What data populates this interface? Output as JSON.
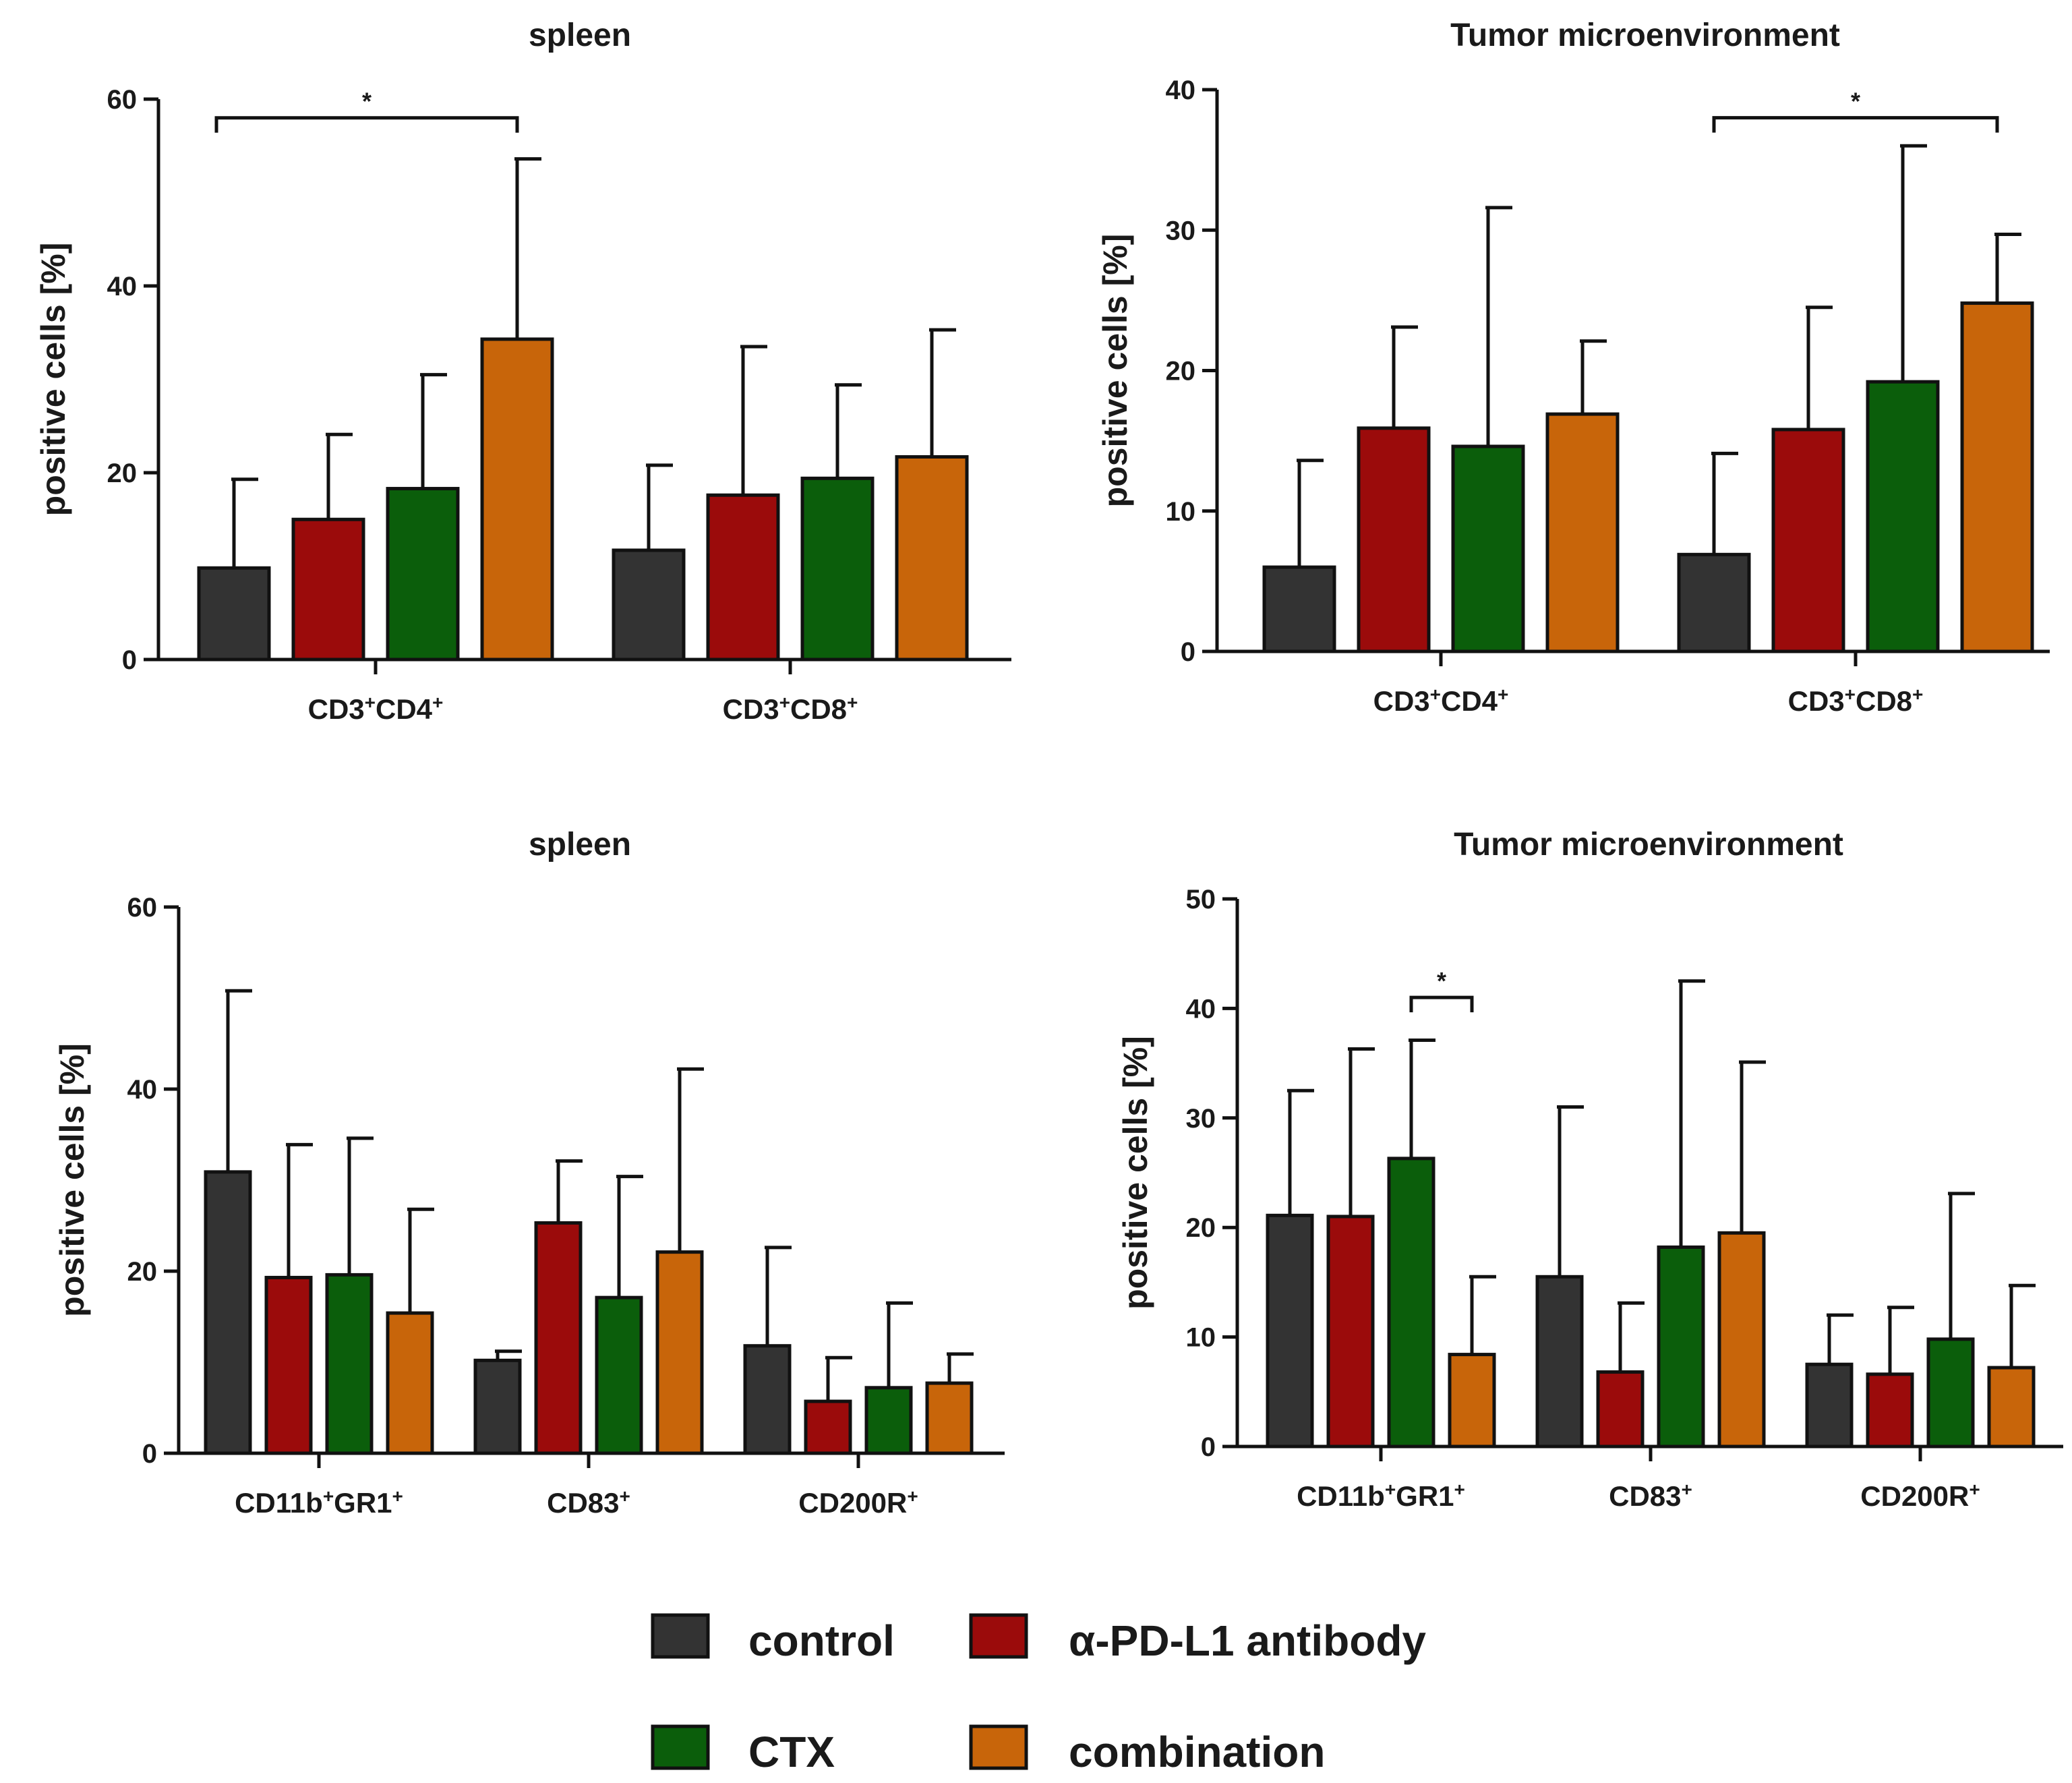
{
  "chart_data": [
    {
      "type": "bar",
      "title": "spleen",
      "ylabel": "positive cells [%]",
      "ylim": [
        0,
        60
      ],
      "yticks": [
        0,
        20,
        40,
        60
      ],
      "categories": [
        {
          "base": "CD3",
          "sup1": "+",
          "mid": "CD4",
          "sup2": "+"
        },
        {
          "base": "CD3",
          "sup1": "+",
          "mid": "CD8",
          "sup2": "+"
        }
      ],
      "series": [
        {
          "name": "control",
          "values": [
            9.8,
            11.7
          ],
          "errors": [
            9.5,
            9.1
          ]
        },
        {
          "name": "α-PD-L1 antibody",
          "values": [
            15.0,
            17.6
          ],
          "errors": [
            9.1,
            15.9
          ]
        },
        {
          "name": "CTX",
          "values": [
            18.3,
            19.4
          ],
          "errors": [
            12.2,
            10.0
          ]
        },
        {
          "name": "combination",
          "values": [
            34.3,
            21.7
          ],
          "errors": [
            19.3,
            13.6
          ]
        }
      ],
      "significance": [
        {
          "label": "*",
          "from": [
            0,
            0
          ],
          "to": [
            0,
            3
          ],
          "y": 58
        }
      ]
    },
    {
      "type": "bar",
      "title": "Tumor microenvironment",
      "ylabel": "positive cells [%]",
      "ylim": [
        0,
        40
      ],
      "yticks": [
        0,
        10,
        20,
        30,
        40
      ],
      "categories": [
        {
          "base": "CD3",
          "sup1": "+",
          "mid": "CD4",
          "sup2": "+"
        },
        {
          "base": "CD3",
          "sup1": "+",
          "mid": "CD8",
          "sup2": "+"
        }
      ],
      "series": [
        {
          "name": "control",
          "values": [
            6.0,
            6.9
          ],
          "errors": [
            7.6,
            7.2
          ]
        },
        {
          "name": "α-PD-L1 antibody",
          "values": [
            15.9,
            15.8
          ],
          "errors": [
            7.2,
            8.7
          ]
        },
        {
          "name": "CTX",
          "values": [
            14.6,
            19.2
          ],
          "errors": [
            17.0,
            16.8
          ]
        },
        {
          "name": "combination",
          "values": [
            16.9,
            24.8
          ],
          "errors": [
            5.2,
            4.9
          ]
        }
      ],
      "significance": [
        {
          "label": "*",
          "from": [
            1,
            0
          ],
          "to": [
            1,
            3
          ],
          "y": 38
        }
      ]
    },
    {
      "type": "bar",
      "title": "spleen",
      "ylabel": "positive cells [%]",
      "ylim": [
        0,
        60
      ],
      "yticks": [
        0,
        20,
        40,
        60
      ],
      "categories": [
        {
          "base": "CD11b",
          "sup1": "+",
          "mid": "GR1",
          "sup2": "+"
        },
        {
          "base": "CD83",
          "sup1": "+",
          "mid": "",
          "sup2": ""
        },
        {
          "base": "CD200R",
          "sup1": "+",
          "mid": "",
          "sup2": ""
        }
      ],
      "series": [
        {
          "name": "control",
          "values": [
            30.9,
            10.2,
            11.8
          ],
          "errors": [
            19.9,
            1.0,
            10.8
          ]
        },
        {
          "name": "α-PD-L1 antibody",
          "values": [
            19.3,
            25.3,
            5.7
          ],
          "errors": [
            14.6,
            6.8,
            4.8
          ]
        },
        {
          "name": "CTX",
          "values": [
            19.6,
            17.1,
            7.2
          ],
          "errors": [
            15.0,
            13.3,
            9.3
          ]
        },
        {
          "name": "combination",
          "values": [
            15.4,
            22.1,
            7.7
          ],
          "errors": [
            11.4,
            20.1,
            3.2
          ]
        }
      ],
      "significance": []
    },
    {
      "type": "bar",
      "title": "Tumor microenvironment",
      "ylabel": "positive cells [%]",
      "ylim": [
        0,
        50
      ],
      "yticks": [
        0,
        10,
        20,
        30,
        40,
        50
      ],
      "categories": [
        {
          "base": "CD11b",
          "sup1": "+",
          "mid": "GR1",
          "sup2": "+"
        },
        {
          "base": "CD83",
          "sup1": "+",
          "mid": "",
          "sup2": ""
        },
        {
          "base": "CD200R",
          "sup1": "+",
          "mid": "",
          "sup2": ""
        }
      ],
      "series": [
        {
          "name": "control",
          "values": [
            21.1,
            15.5,
            7.5
          ],
          "errors": [
            11.4,
            15.5,
            4.5
          ]
        },
        {
          "name": "α-PD-L1 antibody",
          "values": [
            21.0,
            6.8,
            6.6
          ],
          "errors": [
            15.3,
            6.3,
            6.1
          ]
        },
        {
          "name": "CTX",
          "values": [
            26.3,
            18.2,
            9.8
          ],
          "errors": [
            10.8,
            24.3,
            13.3
          ]
        },
        {
          "name": "combination",
          "values": [
            8.4,
            19.5,
            7.2
          ],
          "errors": [
            7.1,
            15.6,
            7.5
          ]
        }
      ],
      "significance": [
        {
          "label": "*",
          "from": [
            0,
            2
          ],
          "to": [
            0,
            3
          ],
          "y": 41
        }
      ]
    }
  ],
  "legend": {
    "items": [
      {
        "name": "control",
        "color": "#333333"
      },
      {
        "name": "α-PD-L1 antibody",
        "color": "#9b0b0b"
      },
      {
        "name": "CTX",
        "color": "#0b5e0b"
      },
      {
        "name": "combination",
        "color": "#c8650a"
      }
    ]
  },
  "colors": {
    "control": "#333333",
    "antibody": "#9b0b0b",
    "ctx": "#0b5e0b",
    "combination": "#c8650a",
    "axis": "#111111"
  }
}
